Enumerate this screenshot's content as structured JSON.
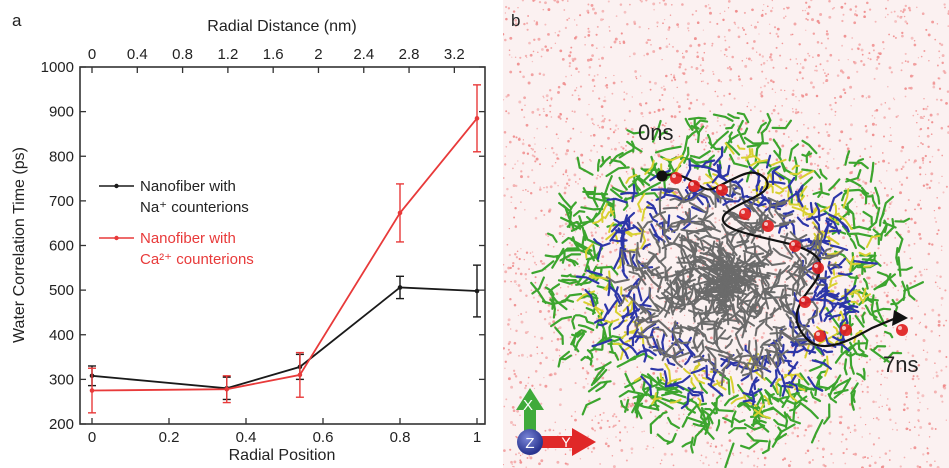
{
  "panel_a_label": "a",
  "panel_b_label": "b",
  "chart_data": {
    "type": "line",
    "xlabel": "Radial Position",
    "ylabel": "Water Correlation Time (ps)",
    "top_xlabel": "Radial Distance (nm)",
    "xlim": [
      0,
      1
    ],
    "ylim": [
      200,
      1000
    ],
    "xticks": [
      0,
      0.2,
      0.4,
      0.6,
      0.8,
      1
    ],
    "xtick_labels": [
      "0",
      "0.2",
      "0.4",
      "0.6",
      "0.8",
      "1"
    ],
    "yticks": [
      200,
      300,
      400,
      500,
      600,
      700,
      800,
      900,
      1000
    ],
    "ytick_labels": [
      "200",
      "300",
      "400",
      "500",
      "600",
      "700",
      "800",
      "900",
      "1000"
    ],
    "top_xticks": [
      0,
      0.4,
      0.8,
      1.2,
      1.6,
      2,
      2.4,
      2.8,
      3.2
    ],
    "top_xtick_labels": [
      "0",
      "0.4",
      "0.8",
      "1.2",
      "1.6",
      "2",
      "2.4",
      "2.8",
      "3.2"
    ],
    "top_axis_max_nm": 3.4,
    "series": [
      {
        "name_line1": "Nanofiber with",
        "name_line2": "Na⁺ counterions",
        "color": "#1a1a1a",
        "x": [
          0,
          0.35,
          0.54,
          0.8,
          1.0
        ],
        "y": [
          308,
          280,
          328,
          506,
          498
        ],
        "err": [
          22,
          25,
          28,
          25,
          58
        ]
      },
      {
        "name_line1": "Nanofiber with",
        "name_line2": "Ca²⁺ counterions",
        "color": "#e83a3a",
        "x": [
          0,
          0.35,
          0.54,
          0.8,
          1.0
        ],
        "y": [
          275,
          278,
          310,
          673,
          885
        ],
        "err": [
          50,
          30,
          50,
          65,
          75
        ]
      }
    ]
  },
  "snapshot": {
    "start_label": "0ns",
    "end_label": "7ns",
    "axes": {
      "x": "X",
      "y": "Y",
      "z": "Z"
    },
    "colors": {
      "water": "#ef8a8a",
      "chain_outer": "#3ca52e",
      "chain_yellow": "#d8d030",
      "chain_blue": "#2d36a8",
      "core": "#6b6b6b",
      "ion_red": "#e02020"
    }
  }
}
